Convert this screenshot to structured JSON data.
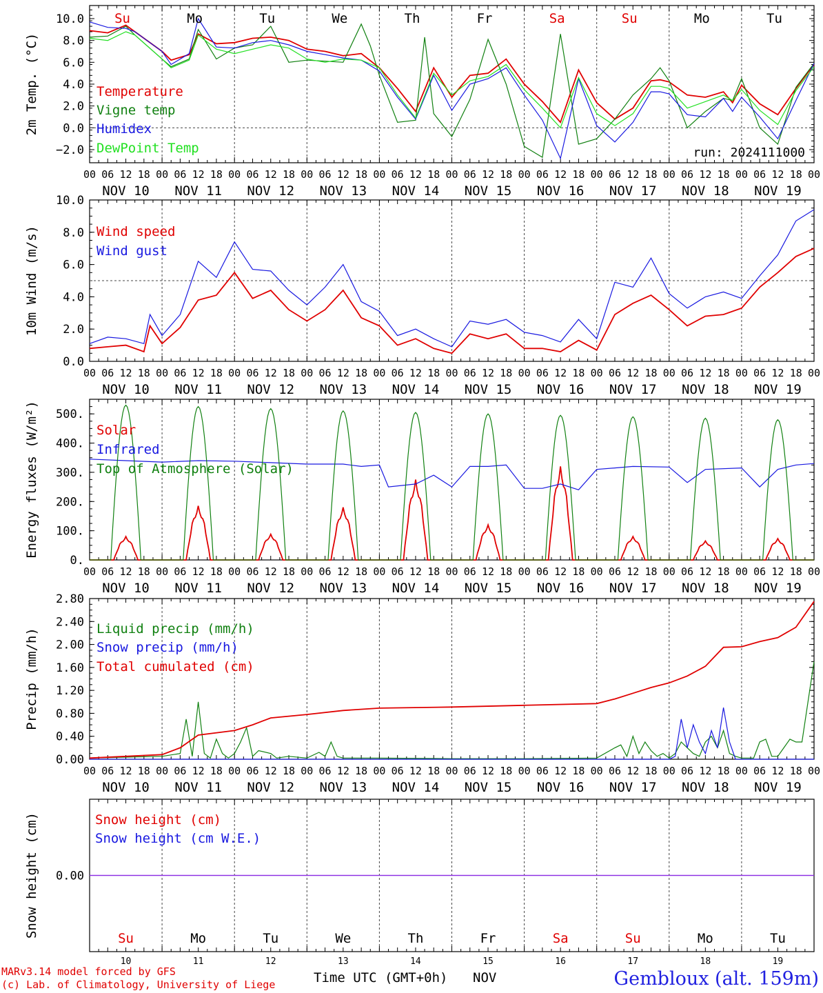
{
  "credits": {
    "line1": "MARv3.14 model forced by GFS",
    "line2": "(c) Lab. of Climatology, University of Liege"
  },
  "station": "Gembloux (alt. 159m)",
  "time_axis_label": "Time UTC (GMT+0h)",
  "month_label": "NOV",
  "colors": {
    "red": "#e00000",
    "green": "#108010",
    "blue": "#1818e0",
    "lightgreen": "#22e022",
    "purple": "#8a2be2"
  },
  "chart_data": [
    {
      "type": "line",
      "id": "temp",
      "ylabel": "2m Temp. (°C)",
      "ylim": [
        -3.2,
        11.2
      ],
      "yticks": [
        "10.0",
        "8.0",
        "6.0",
        "4.0",
        "2.0",
        "0.0",
        "−2.0"
      ],
      "ytick_values": [
        10,
        8,
        6,
        4,
        2,
        0,
        -2
      ],
      "annotation": "run: 2024111000",
      "day_names": [
        "Su",
        "Mo",
        "Tu",
        "We",
        "Th",
        "Fr",
        "Sa",
        "Su",
        "Mo",
        "Tu"
      ],
      "day_colors": [
        "red",
        "black",
        "black",
        "black",
        "black",
        "black",
        "red",
        "red",
        "black",
        "black"
      ],
      "dates": [
        "NOV 10",
        "NOV 11",
        "NOV 12",
        "NOV 13",
        "NOV 14",
        "NOV 15",
        "NOV 16",
        "NOV 17",
        "NOV 18",
        "NOV 19"
      ],
      "hour_ticks": [
        "00",
        "06",
        "12",
        "18"
      ],
      "series": [
        {
          "name": "Temperature",
          "color": "red",
          "x": [
            0,
            6,
            12,
            15,
            24,
            27,
            33,
            36,
            42,
            48,
            54,
            60,
            66,
            72,
            78,
            84,
            90,
            96,
            102,
            108,
            114,
            120,
            126,
            132,
            138,
            144,
            150,
            156,
            162,
            168,
            174,
            180,
            186,
            189,
            192,
            198,
            204,
            210,
            213,
            216,
            222,
            228,
            234,
            240
          ],
          "y": [
            8.9,
            8.7,
            9.4,
            8.8,
            7.0,
            6.2,
            6.7,
            8.6,
            7.7,
            7.8,
            8.2,
            8.3,
            8.0,
            7.2,
            7.0,
            6.6,
            6.8,
            5.5,
            3.6,
            1.5,
            5.5,
            2.8,
            4.8,
            5.0,
            6.3,
            4.0,
            2.4,
            0.5,
            5.3,
            2.3,
            0.8,
            1.8,
            4.3,
            4.4,
            4.2,
            3.0,
            2.8,
            3.3,
            2.3,
            3.9,
            2.2,
            1.2,
            3.6,
            5.8
          ]
        },
        {
          "name": "Vigne temp",
          "color": "green",
          "x": [
            0,
            6,
            12,
            15,
            24,
            27,
            33,
            36,
            42,
            48,
            54,
            60,
            66,
            72,
            78,
            84,
            90,
            93,
            96,
            102,
            108,
            111,
            114,
            120,
            126,
            132,
            138,
            144,
            150,
            156,
            162,
            168,
            174,
            180,
            186,
            189,
            192,
            198,
            204,
            210,
            213,
            216,
            222,
            228,
            234,
            240
          ],
          "y": [
            8.3,
            8.4,
            9.3,
            8.5,
            6.3,
            5.6,
            6.3,
            9.0,
            6.3,
            7.3,
            7.6,
            9.3,
            6.0,
            6.2,
            6.1,
            6.0,
            9.5,
            7.5,
            4.8,
            0.5,
            0.7,
            8.3,
            1.3,
            -0.8,
            2.6,
            8.1,
            4.0,
            -1.7,
            -2.7,
            8.6,
            -1.5,
            -1.0,
            0.8,
            3.0,
            4.5,
            5.5,
            4.3,
            0.0,
            1.5,
            2.7,
            2.5,
            4.5,
            0.0,
            -1.5,
            3.7,
            5.9
          ]
        },
        {
          "name": "Humidex",
          "color": "blue",
          "x": [
            0,
            6,
            12,
            15,
            24,
            27,
            33,
            36,
            42,
            48,
            54,
            60,
            66,
            72,
            78,
            84,
            90,
            96,
            102,
            108,
            114,
            120,
            126,
            132,
            138,
            144,
            150,
            156,
            162,
            168,
            174,
            180,
            186,
            189,
            192,
            198,
            204,
            210,
            213,
            216,
            222,
            228,
            234,
            240
          ],
          "y": [
            9.7,
            9.2,
            9.1,
            8.8,
            7.0,
            5.8,
            6.8,
            10.0,
            7.4,
            7.3,
            7.8,
            8.0,
            7.6,
            7.0,
            6.7,
            6.4,
            6.2,
            5.2,
            2.8,
            0.8,
            4.8,
            1.6,
            4.0,
            4.5,
            5.5,
            3.0,
            0.7,
            -2.8,
            4.5,
            0.2,
            -1.3,
            0.5,
            3.3,
            3.3,
            3.1,
            1.2,
            1.0,
            2.7,
            1.5,
            2.8,
            1.0,
            -1.0,
            2.5,
            5.9
          ]
        },
        {
          "name": "DewPoint Temp",
          "color": "lightgreen",
          "x": [
            0,
            6,
            12,
            15,
            24,
            27,
            33,
            36,
            42,
            48,
            54,
            60,
            66,
            72,
            78,
            84,
            90,
            96,
            102,
            108,
            114,
            120,
            126,
            132,
            138,
            144,
            150,
            156,
            162,
            168,
            174,
            180,
            186,
            189,
            192,
            198,
            204,
            210,
            213,
            216,
            222,
            228,
            234,
            240
          ],
          "y": [
            8.2,
            8.0,
            8.8,
            8.5,
            6.3,
            5.5,
            6.2,
            8.5,
            7.2,
            6.8,
            7.2,
            7.6,
            7.3,
            6.3,
            6.0,
            6.3,
            6.2,
            5.5,
            3.0,
            0.9,
            5.0,
            3.0,
            4.3,
            4.7,
            5.8,
            3.5,
            1.8,
            0.0,
            4.6,
            1.3,
            0.2,
            1.3,
            3.8,
            3.8,
            3.6,
            1.8,
            2.4,
            3.0,
            2.5,
            3.5,
            1.6,
            0.3,
            3.4,
            5.6
          ]
        }
      ]
    },
    {
      "type": "line",
      "id": "wind",
      "ylabel": "10m Wind (m/s)",
      "ylim": [
        0,
        10
      ],
      "yticks": [
        "10.0",
        "8.0",
        "6.0",
        "4.0",
        "2.0",
        "0.0"
      ],
      "ytick_values": [
        10,
        8,
        6,
        4,
        2,
        0
      ],
      "dates": [
        "NOV 10",
        "NOV 11",
        "NOV 12",
        "NOV 13",
        "NOV 14",
        "NOV 15",
        "NOV 16",
        "NOV 17",
        "NOV 18",
        "NOV 19"
      ],
      "series": [
        {
          "name": "Wind speed",
          "color": "red",
          "x": [
            0,
            6,
            12,
            18,
            20,
            24,
            30,
            36,
            42,
            48,
            54,
            60,
            66,
            72,
            78,
            84,
            90,
            96,
            102,
            108,
            114,
            120,
            126,
            132,
            138,
            144,
            150,
            156,
            162,
            168,
            174,
            180,
            186,
            192,
            198,
            204,
            210,
            216,
            222,
            228,
            234,
            240
          ],
          "y": [
            0.8,
            0.9,
            1.0,
            0.6,
            2.2,
            1.1,
            2.1,
            3.8,
            4.1,
            5.5,
            3.9,
            4.4,
            3.2,
            2.5,
            3.2,
            4.4,
            2.7,
            2.2,
            1.0,
            1.4,
            0.8,
            0.5,
            1.7,
            1.4,
            1.7,
            0.8,
            0.8,
            0.6,
            1.3,
            0.7,
            2.9,
            3.6,
            4.1,
            3.2,
            2.2,
            2.8,
            2.9,
            3.3,
            4.6,
            5.5,
            6.5,
            7.0
          ]
        },
        {
          "name": "Wind gust",
          "color": "blue",
          "x": [
            0,
            6,
            12,
            18,
            20,
            24,
            30,
            36,
            42,
            48,
            54,
            60,
            66,
            72,
            78,
            84,
            90,
            96,
            102,
            108,
            114,
            120,
            126,
            132,
            138,
            144,
            150,
            156,
            162,
            168,
            174,
            180,
            186,
            192,
            198,
            204,
            210,
            216,
            222,
            228,
            234,
            240
          ],
          "y": [
            1.1,
            1.5,
            1.4,
            1.1,
            2.9,
            1.6,
            2.9,
            6.2,
            5.2,
            7.4,
            5.7,
            5.6,
            4.4,
            3.5,
            4.6,
            6.0,
            3.7,
            3.1,
            1.6,
            2.0,
            1.4,
            0.9,
            2.5,
            2.3,
            2.6,
            1.8,
            1.6,
            1.2,
            2.6,
            1.4,
            4.9,
            4.6,
            6.4,
            4.2,
            3.3,
            4.0,
            4.3,
            3.9,
            5.3,
            6.6,
            8.7,
            9.4
          ]
        }
      ],
      "reference_line": 5.0
    },
    {
      "type": "line",
      "id": "energy",
      "ylabel": "Energy fluxes (W/m²)",
      "ylim": [
        0,
        550
      ],
      "yticks": [
        "500.",
        "400.",
        "300.",
        "200.",
        "100.",
        "0."
      ],
      "ytick_values": [
        500,
        400,
        300,
        200,
        100,
        0
      ],
      "dates": [
        "NOV 10",
        "NOV 11",
        "NOV 12",
        "NOV 13",
        "NOV 14",
        "NOV 15",
        "NOV 16",
        "NOV 17",
        "NOV 18",
        "NOV 19"
      ],
      "series": [
        {
          "name": "Solar",
          "color": "red",
          "daily_peaks": [
            80,
            185,
            88,
            180,
            275,
            120,
            320,
            80,
            65,
            73
          ]
        },
        {
          "name": "Infrared",
          "color": "blue",
          "x": [
            0,
            12,
            24,
            36,
            48,
            60,
            72,
            84,
            90,
            96,
            99,
            108,
            114,
            120,
            126,
            132,
            138,
            144,
            150,
            156,
            162,
            168,
            174,
            180,
            192,
            198,
            204,
            216,
            222,
            228,
            234,
            240
          ],
          "y": [
            345,
            340,
            335,
            340,
            338,
            333,
            328,
            328,
            320,
            325,
            250,
            260,
            290,
            250,
            320,
            320,
            325,
            245,
            245,
            260,
            240,
            310,
            315,
            320,
            318,
            265,
            310,
            315,
            250,
            310,
            325,
            330
          ]
        },
        {
          "name": "Top of Atmosphere (Solar)",
          "color": "green",
          "daily_peaks": [
            530,
            525,
            518,
            510,
            505,
            500,
            495,
            490,
            485,
            480
          ]
        }
      ]
    },
    {
      "type": "line",
      "id": "precip",
      "ylabel": "Precip (mm/h)",
      "ylim": [
        0,
        2.8
      ],
      "yticks": [
        "2.80",
        "2.40",
        "2.00",
        "1.60",
        "1.20",
        "0.80",
        "0.40",
        "0.00"
      ],
      "ytick_values": [
        2.8,
        2.4,
        2.0,
        1.6,
        1.2,
        0.8,
        0.4,
        0.0
      ],
      "dates": [
        "NOV 10",
        "NOV 11",
        "NOV 12",
        "NOV 13",
        "NOV 14",
        "NOV 15",
        "NOV 16",
        "NOV 17",
        "NOV 18",
        "NOV 19"
      ],
      "series": [
        {
          "name": "Liquid precip (mm/h)",
          "color": "green",
          "x": [
            0,
            24,
            30,
            32,
            34,
            36,
            38,
            40,
            42,
            44,
            46,
            48,
            50,
            52,
            54,
            56,
            60,
            62,
            66,
            72,
            76,
            78,
            80,
            82,
            84,
            96,
            120,
            144,
            168,
            174,
            176,
            178,
            180,
            182,
            184,
            186,
            188,
            190,
            192,
            194,
            196,
            198,
            200,
            202,
            204,
            206,
            208,
            210,
            212,
            214,
            216,
            220,
            222,
            224,
            226,
            228,
            230,
            232,
            234,
            236,
            238,
            240
          ],
          "y": [
            0.02,
            0.05,
            0.1,
            0.7,
            0.05,
            1.0,
            0.1,
            0.02,
            0.35,
            0.1,
            0.02,
            0.1,
            0.3,
            0.55,
            0.05,
            0.15,
            0.1,
            0.02,
            0.05,
            0.02,
            0.12,
            0.05,
            0.3,
            0.05,
            0.02,
            0.02,
            0.01,
            0.01,
            0.02,
            0.2,
            0.25,
            0.05,
            0.4,
            0.1,
            0.3,
            0.15,
            0.05,
            0.1,
            0.02,
            0.1,
            0.3,
            0.2,
            0.1,
            0.05,
            0.3,
            0.4,
            0.2,
            0.5,
            0.1,
            0.05,
            0.02,
            0.02,
            0.3,
            0.35,
            0.05,
            0.05,
            0.2,
            0.35,
            0.3,
            0.3,
            1.0,
            1.7
          ]
        },
        {
          "name": "Snow precip (mm/h)",
          "color": "blue",
          "x": [
            0,
            192,
            194,
            196,
            198,
            200,
            202,
            204,
            206,
            208,
            210,
            212,
            214,
            240
          ],
          "y": [
            0,
            0,
            0.05,
            0.7,
            0.2,
            0.6,
            0.3,
            0.1,
            0.5,
            0.2,
            0.9,
            0.3,
            0.0,
            0
          ]
        },
        {
          "name": "Total cumulated (cm)",
          "color": "red",
          "x": [
            0,
            24,
            30,
            36,
            48,
            54,
            60,
            72,
            84,
            96,
            120,
            144,
            168,
            174,
            180,
            186,
            192,
            198,
            204,
            210,
            216,
            222,
            228,
            234,
            240
          ],
          "y": [
            0.02,
            0.08,
            0.2,
            0.42,
            0.5,
            0.6,
            0.72,
            0.78,
            0.85,
            0.89,
            0.91,
            0.94,
            0.97,
            1.05,
            1.15,
            1.25,
            1.33,
            1.45,
            1.62,
            1.95,
            1.96,
            2.05,
            2.12,
            2.3,
            2.75
          ]
        }
      ]
    },
    {
      "type": "line",
      "id": "snow",
      "ylabel": "Snow height (cm)",
      "yticks": [
        "0.00"
      ],
      "ytick_values": [
        0
      ],
      "ylim": [
        -1,
        1
      ],
      "day_names": [
        "Su",
        "Mo",
        "Tu",
        "We",
        "Th",
        "Fr",
        "Sa",
        "Su",
        "Mo",
        "Tu"
      ],
      "day_colors": [
        "red",
        "black",
        "black",
        "black",
        "black",
        "black",
        "red",
        "red",
        "black",
        "black"
      ],
      "day_numbers": [
        "10",
        "11",
        "12",
        "13",
        "14",
        "15",
        "16",
        "17",
        "18",
        "19"
      ],
      "series": [
        {
          "name": "Snow height (cm)",
          "color": "red",
          "x": [
            0,
            240
          ],
          "y": [
            0,
            0
          ]
        },
        {
          "name": "Snow height (cm W.E.)",
          "color": "blue",
          "x": [
            0,
            240
          ],
          "y": [
            0,
            0
          ]
        }
      ]
    }
  ]
}
